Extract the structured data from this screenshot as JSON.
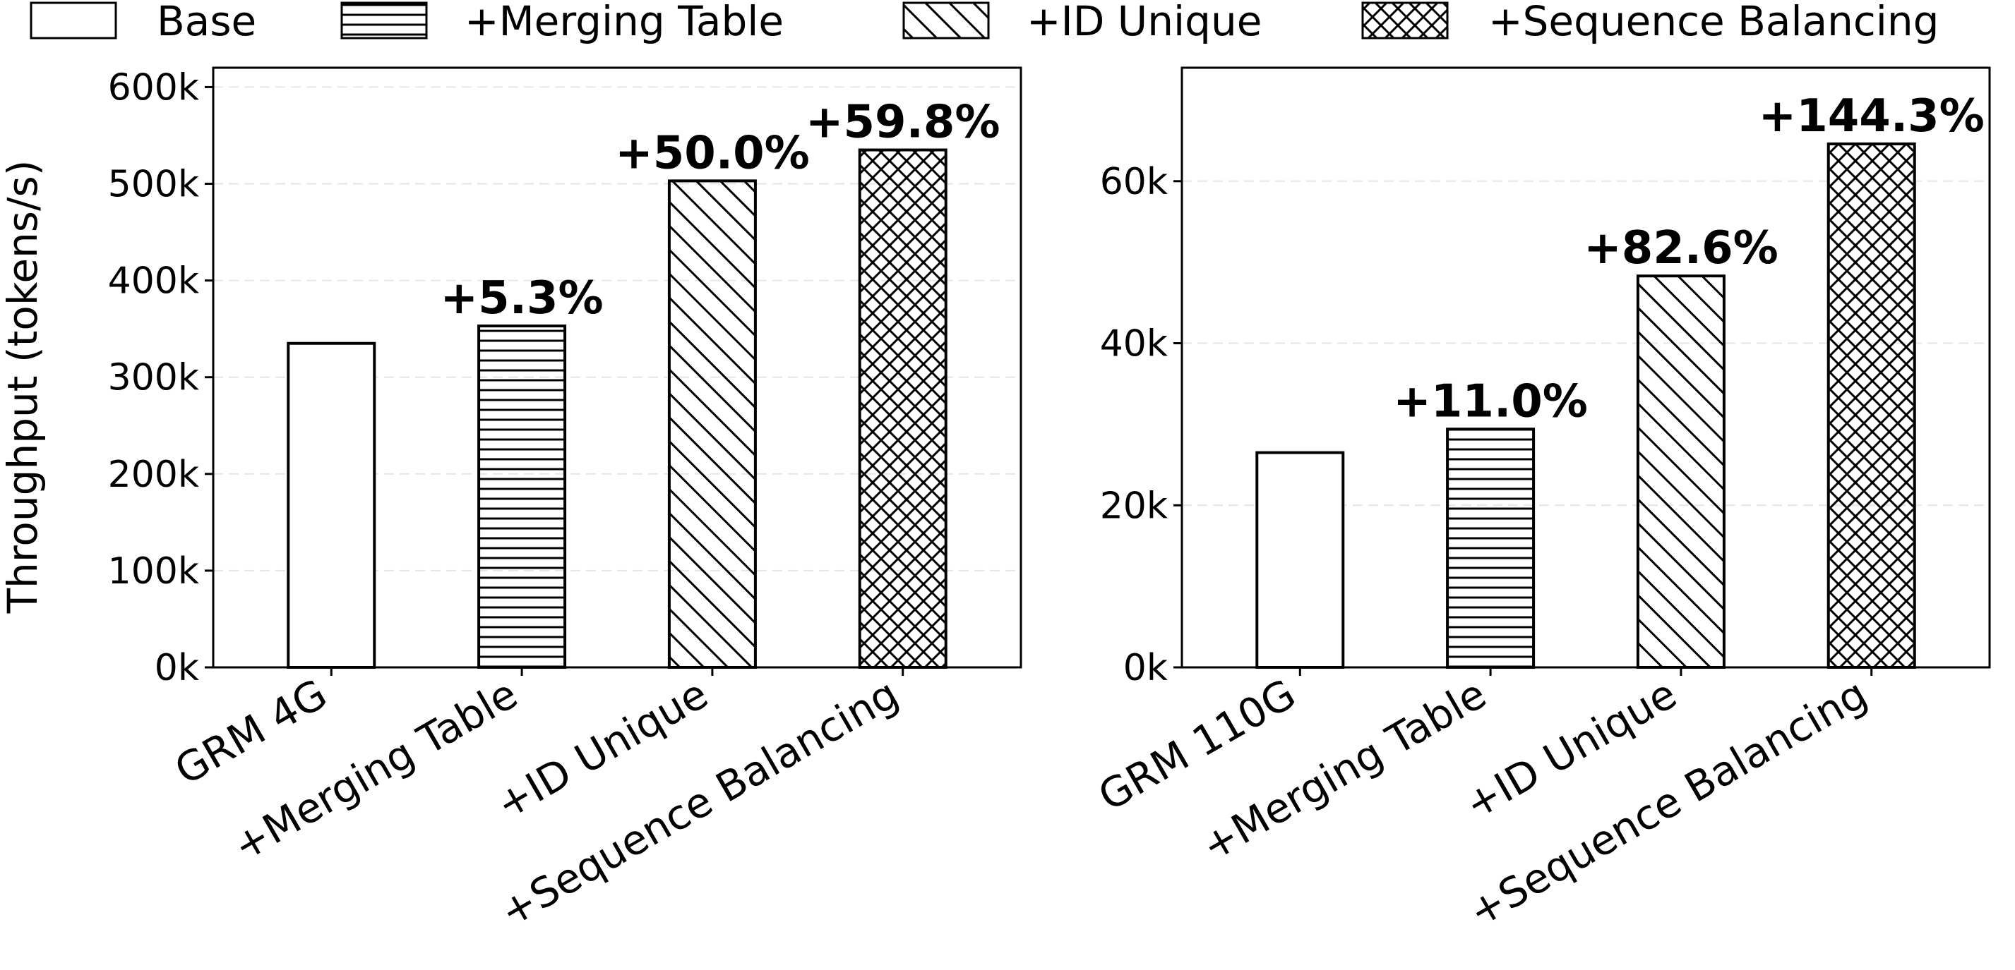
{
  "legend": {
    "items": [
      {
        "label": "Base",
        "pattern": "none"
      },
      {
        "label": "+Merging Table",
        "pattern": "horizontal"
      },
      {
        "label": "+ID Unique",
        "pattern": "diagonal"
      },
      {
        "label": "+Sequence Balancing",
        "pattern": "crosshatch"
      }
    ]
  },
  "colors": {
    "bar_edge": "#000000",
    "bar_fill": "#ffffff",
    "grid": "#e6e6e6"
  },
  "chart_data": [
    {
      "type": "bar",
      "ylabel": "Throughput (tokens/s)",
      "ylim": [
        0,
        620000
      ],
      "yticks": [
        0,
        100000,
        200000,
        300000,
        400000,
        500000,
        600000
      ],
      "ytick_labels": [
        "0k",
        "100k",
        "200k",
        "300k",
        "400k",
        "500k",
        "600k"
      ],
      "grid": true,
      "categories": [
        "GRM 4G",
        "+Merging Table",
        "+ID Unique",
        "+Sequence Balancing"
      ],
      "values": [
        335000,
        353000,
        503000,
        535000
      ],
      "data_labels": [
        "",
        "+5.3%",
        "+50.0%",
        "+59.8%"
      ]
    },
    {
      "type": "bar",
      "ylabel": "",
      "ylim": [
        0,
        74000
      ],
      "yticks": [
        0,
        20000,
        40000,
        60000
      ],
      "ytick_labels": [
        "0k",
        "20k",
        "40k",
        "60k"
      ],
      "grid": true,
      "categories": [
        "GRM 110G",
        "+Merging Table",
        "+ID Unique",
        "+Sequence Balancing"
      ],
      "values": [
        26500,
        29400,
        48300,
        64600
      ],
      "data_labels": [
        "",
        "+11.0%",
        "+82.6%",
        "+144.3%"
      ]
    }
  ]
}
